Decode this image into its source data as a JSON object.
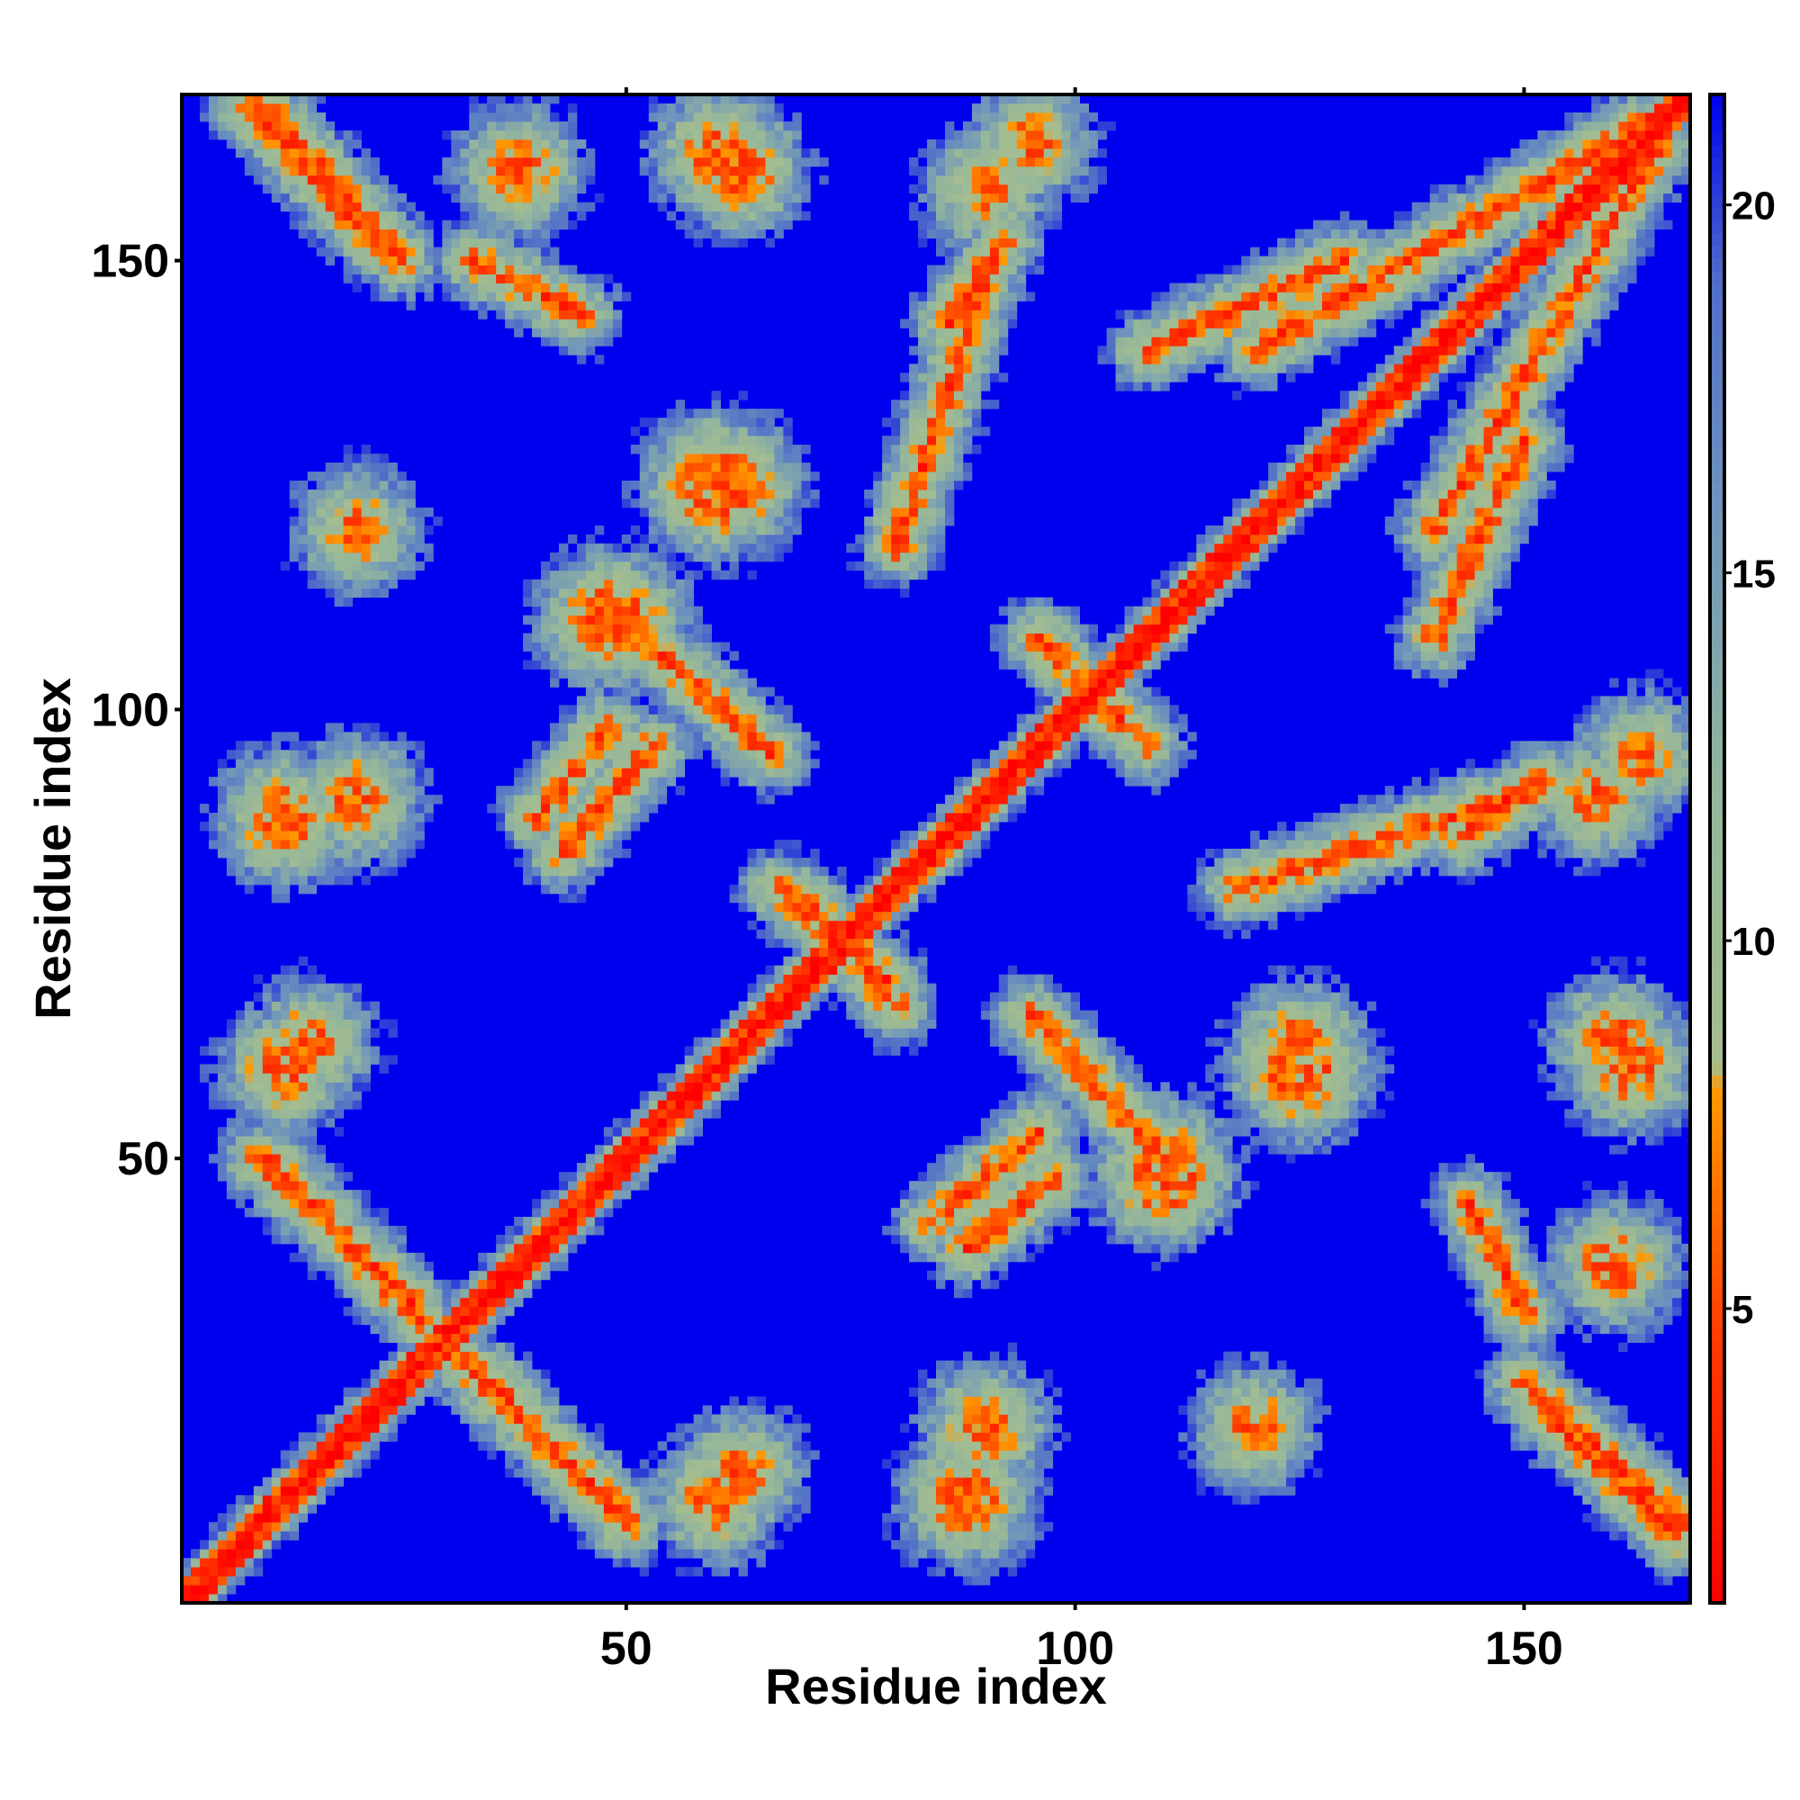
{
  "chart_data": {
    "type": "heatmap",
    "title": "",
    "xlabel": "Residue index",
    "ylabel": "Residue index",
    "n_residues": 168,
    "xlim": [
      0.5,
      168.5
    ],
    "ylim": [
      0.5,
      168.5
    ],
    "x_ticks": [
      50,
      100,
      150
    ],
    "y_ticks": [
      50,
      100,
      150
    ],
    "colorbar": {
      "range": [
        1,
        21.5
      ],
      "ticks": [
        5,
        10,
        15,
        20
      ],
      "stops": [
        {
          "value": 1.0,
          "color": "#ff0000"
        },
        {
          "value": 4.5,
          "color": "#ff3800"
        },
        {
          "value": 8.0,
          "color": "#ff9900"
        },
        {
          "value": 8.3,
          "color": "#a5bd8f"
        },
        {
          "value": 12.0,
          "color": "#94b69b"
        },
        {
          "value": 16.0,
          "color": "#6d93bd"
        },
        {
          "value": 19.0,
          "color": "#4f6dc8"
        },
        {
          "value": 21.5,
          "color": "#0000ee"
        }
      ]
    },
    "background_value": 21.5,
    "contacts": [
      {
        "type": "diagonal",
        "from": 1,
        "to": 168
      },
      {
        "type": "anti",
        "from": [
          9,
          50
        ],
        "to": [
          26,
          34
        ]
      },
      {
        "type": "anti",
        "from": [
          32,
          27
        ],
        "to": [
          50,
          10
        ]
      },
      {
        "type": "anti",
        "from": [
          70,
          79
        ],
        "to": [
          80,
          67
        ]
      },
      {
        "type": "anti",
        "from": [
          50,
          110
        ],
        "to": [
          66,
          95
        ]
      },
      {
        "type": "anti",
        "from": [
          40,
          88
        ],
        "to": [
          48,
          98
        ]
      },
      {
        "type": "anti",
        "from": [
          98,
          106
        ],
        "to": [
          108,
          96
        ]
      },
      {
        "type": "anti",
        "from": [
          84,
          43
        ],
        "to": [
          96,
          53
        ]
      },
      {
        "type": "anti",
        "from": [
          86,
          143
        ],
        "to": [
          92,
          152
        ]
      },
      {
        "type": "anti",
        "from": [
          118,
          80
        ],
        "to": [
          148,
          90
        ]
      },
      {
        "type": "anti",
        "from": [
          152,
          22
        ],
        "to": [
          167,
          8
        ]
      },
      {
        "type": "anti",
        "from": [
          140,
          108
        ],
        "to": [
          150,
          130
        ]
      },
      {
        "type": "anti",
        "from": [
          9,
          168
        ],
        "to": [
          25,
          150
        ]
      },
      {
        "type": "anti",
        "from": [
          33,
          150
        ],
        "to": [
          45,
          144
        ]
      },
      {
        "type": "parallel",
        "from": [
          120,
          140
        ],
        "to": [
          163,
          165
        ]
      },
      {
        "type": "blob",
        "center": [
          110,
          48
        ],
        "radius": 7
      },
      {
        "type": "blob",
        "center": [
          125,
          60
        ],
        "radius": 8
      },
      {
        "type": "blob",
        "center": [
          62,
          125
        ],
        "radius": 6
      },
      {
        "type": "blob",
        "center": [
          50,
          110
        ],
        "radius": 5
      },
      {
        "type": "blob",
        "center": [
          88,
          12
        ],
        "radius": 6
      },
      {
        "type": "blob",
        "center": [
          60,
          12
        ],
        "radius": 5
      },
      {
        "type": "blob",
        "center": [
          20,
          90
        ],
        "radius": 5
      },
      {
        "type": "blob",
        "center": [
          15,
          63
        ],
        "radius": 4
      },
      {
        "type": "blob",
        "center": [
          162,
          60
        ],
        "radius": 5
      },
      {
        "type": "blob",
        "center": [
          158,
          90
        ],
        "radius": 4
      },
      {
        "type": "blob",
        "center": [
          160,
          38
        ],
        "radius": 5
      },
      {
        "type": "blob",
        "center": [
          20,
          120
        ],
        "radius": 4
      },
      {
        "type": "blob",
        "center": [
          63,
          160
        ],
        "radius": 5
      },
      {
        "type": "blob",
        "center": [
          95,
          163
        ],
        "radius": 4
      }
    ]
  }
}
